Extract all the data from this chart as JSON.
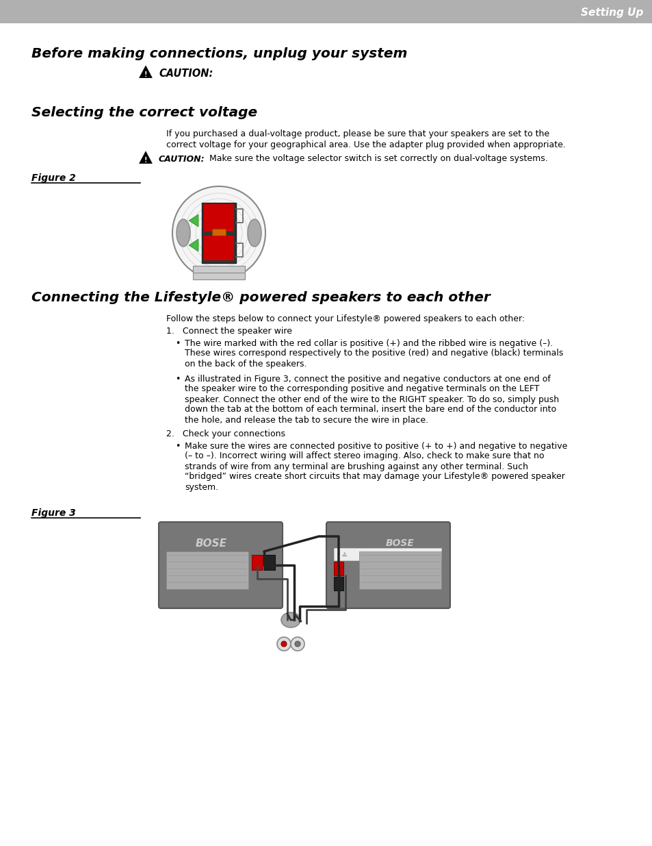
{
  "bg_color": "#ffffff",
  "header_color": "#b0b0b0",
  "header_text": "Setting Up",
  "header_text_color": "#ffffff",
  "title1": "Before making connections, unplug your system",
  "caution1_text": "CAUTION:",
  "title2": "Selecting the correct voltage",
  "voltage_body1": "If you purchased a dual-voltage product, please be sure that your speakers are set to the",
  "voltage_body2": "correct voltage for your geographical area. Use the adapter plug provided when appropriate.",
  "caution2_bold": "CAUTION:",
  "caution2_text": " Make sure the voltage selector switch is set correctly on dual-voltage systems.",
  "figure2_label": "Figure 2",
  "title3": "Connecting the Lifestyle® powered speakers to each other",
  "follow_text": "Follow the steps below to connect your Lifestyle® powered speakers to each other:",
  "step1_text": "1.   Connect the speaker wire",
  "bullet1a": "The wire marked with the red collar is positive (+) and the ribbed wire is negative (–).",
  "bullet1a_2": "These wires correspond respectively to the positive (red) and negative (black) terminals",
  "bullet1a_3": "on the back of the speakers.",
  "bullet1b": "As illustrated in Figure 3, connect the positive and negative conductors at one end of",
  "bullet1b_2": "the speaker wire to the corresponding positive and negative terminals on the LEFT",
  "bullet1b_3": "speaker. Connect the other end of the wire to the RIGHT speaker. To do so, simply push",
  "bullet1b_4": "down the tab at the bottom of each terminal, insert the bare end of the conductor into",
  "bullet1b_5": "the hole, and release the tab to secure the wire in place.",
  "step2_text": "2.   Check your connections",
  "bullet2a": "Make sure the wires are connected positive to positive (+ to +) and negative to negative",
  "bullet2a_2": "(– to –). Incorrect wiring will affect stereo imaging. Also, check to make sure that no",
  "bullet2a_3": "strands of wire from any terminal are brushing against any other terminal. Such",
  "bullet2a_4": "“bridged” wires create short circuits that may damage your Lifestyle® powered speaker",
  "bullet2a_5": "system.",
  "figure3_label": "Figure 3",
  "text_color": "#000000",
  "body_fontsize": 9.0,
  "title_fontsize": 14.5,
  "figure_label_fontsize": 10
}
